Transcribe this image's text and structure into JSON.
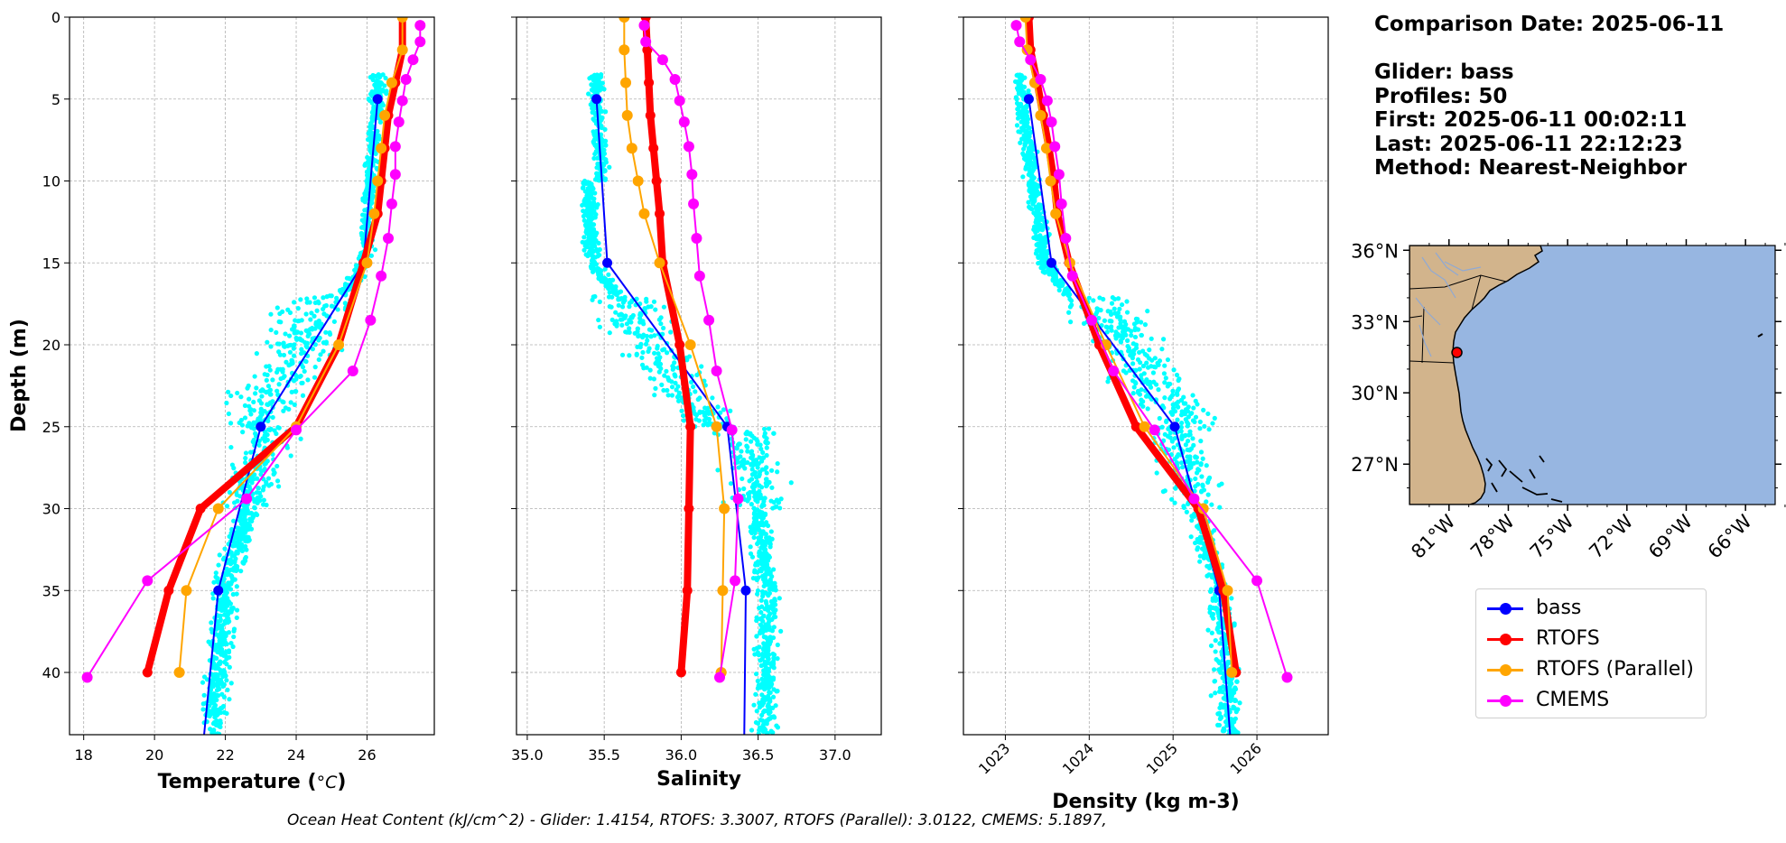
{
  "info": {
    "comparison_date": "Comparison Date: 2025-06-11",
    "glider": "Glider: bass",
    "profiles": "Profiles: 50",
    "first": "First: 2025-06-11 00:02:11",
    "last": "Last: 2025-06-11 22:12:23",
    "method": "Method: Nearest-Neighbor"
  },
  "footer": "Ocean Heat Content (kJ/cm^2) - Glider: 1.4154,  RTOFS: 3.3007,  RTOFS (Parallel): 3.0122,  CMEMS: 5.1897,",
  "colors": {
    "glider_scatter": "#00ffff",
    "bass": "#0000ff",
    "rtofs": "#ff0000",
    "rtofs_parallel": "#ffa500",
    "cmems": "#ff00ff",
    "ocean": "#97b6e1",
    "land": "#d2b48c"
  },
  "legend": [
    {
      "name": "bass",
      "color": "#0000ff"
    },
    {
      "name": "RTOFS",
      "color": "#ff0000"
    },
    {
      "name": "RTOFS (Parallel)",
      "color": "#ffa500"
    },
    {
      "name": "CMEMS",
      "color": "#ff00ff"
    }
  ],
  "map": {
    "lon_ticks": [
      "81°W",
      "78°W",
      "75°W",
      "72°W",
      "69°W",
      "66°W"
    ],
    "lat_ticks": [
      "36°N",
      "33°N",
      "30°N",
      "27°N"
    ],
    "lon_range": [
      -83.0,
      -64.5
    ],
    "lat_range": [
      25.3,
      36.2
    ],
    "glider_position": {
      "lon": -80.6,
      "lat": 31.7
    }
  },
  "chart_data": [
    {
      "type": "line",
      "ylabel": "Depth (m)",
      "xlabel": "Temperature",
      "xlabel_unit": "°C",
      "xlim": [
        17.6,
        27.9
      ],
      "ylim": [
        43.8,
        0
      ],
      "x_ticks": [
        "18",
        "20",
        "22",
        "24",
        "26"
      ],
      "y_ticks": [
        "0",
        "5",
        "10",
        "15",
        "20",
        "25",
        "30",
        "35",
        "40"
      ],
      "grid": true,
      "series": [
        {
          "name": "bass",
          "depth": [
            5,
            15,
            25,
            35,
            43.8
          ],
          "values": [
            26.3,
            25.9,
            23.0,
            21.8,
            21.4
          ]
        },
        {
          "name": "RTOFS",
          "depth": [
            0,
            2,
            4,
            6,
            8,
            10,
            12,
            15,
            20,
            25,
            30,
            35,
            40
          ],
          "values": [
            27.0,
            27.0,
            26.8,
            26.6,
            26.5,
            26.4,
            26.3,
            25.9,
            25.2,
            24.0,
            21.3,
            20.4,
            19.8
          ]
        },
        {
          "name": "RTOFS (Parallel)",
          "depth": [
            0,
            2,
            4,
            6,
            8,
            10,
            12,
            15,
            20,
            25,
            30,
            35,
            40
          ],
          "values": [
            27.0,
            27.0,
            26.7,
            26.5,
            26.4,
            26.3,
            26.2,
            26.0,
            25.2,
            24.0,
            21.8,
            20.9,
            20.7
          ]
        },
        {
          "name": "CMEMS",
          "depth": [
            0.5,
            1.5,
            2.6,
            3.8,
            5.1,
            6.4,
            7.9,
            9.6,
            11.4,
            13.5,
            15.8,
            18.5,
            21.6,
            25.2,
            29.4,
            34.4,
            40.3
          ],
          "values": [
            27.5,
            27.5,
            27.3,
            27.1,
            27.0,
            26.9,
            26.8,
            26.8,
            26.7,
            26.6,
            26.4,
            26.1,
            25.6,
            24.0,
            22.6,
            19.8,
            18.1
          ]
        }
      ]
    },
    {
      "type": "line",
      "xlabel": "Salinity",
      "xlim": [
        34.93,
        37.3
      ],
      "ylim": [
        43.8,
        0
      ],
      "x_ticks": [
        "35.0",
        "35.5",
        "36.0",
        "36.5",
        "37.0"
      ],
      "grid": true,
      "series": [
        {
          "name": "bass",
          "depth": [
            5,
            15,
            25,
            35,
            43.8
          ],
          "values": [
            35.45,
            35.52,
            36.3,
            36.42,
            36.41
          ]
        },
        {
          "name": "RTOFS",
          "depth": [
            0,
            2,
            4,
            6,
            8,
            10,
            12,
            15,
            20,
            25,
            30,
            35,
            40
          ],
          "values": [
            35.77,
            35.78,
            35.79,
            35.8,
            35.82,
            35.84,
            35.86,
            35.88,
            35.99,
            36.06,
            36.05,
            36.04,
            36.0
          ]
        },
        {
          "name": "RTOFS (Parallel)",
          "depth": [
            0,
            2,
            4,
            6,
            8,
            10,
            12,
            15,
            20,
            25,
            30,
            35,
            40
          ],
          "values": [
            35.63,
            35.63,
            35.64,
            35.65,
            35.68,
            35.72,
            35.76,
            35.86,
            36.06,
            36.23,
            36.28,
            36.27,
            36.26
          ]
        },
        {
          "name": "CMEMS",
          "depth": [
            0.5,
            1.5,
            2.6,
            3.8,
            5.1,
            6.4,
            7.9,
            9.6,
            11.4,
            13.5,
            15.8,
            18.5,
            21.6,
            25.2,
            29.4,
            34.4,
            40.3
          ],
          "values": [
            35.76,
            35.77,
            35.88,
            35.96,
            35.99,
            36.02,
            36.05,
            36.07,
            36.08,
            36.1,
            36.12,
            36.18,
            36.23,
            36.33,
            36.37,
            36.35,
            36.25
          ]
        }
      ]
    },
    {
      "type": "line",
      "xlabel": "Density (kg m-3)",
      "xlim": [
        1022.5,
        1026.85
      ],
      "ylim": [
        43.8,
        0
      ],
      "x_ticks": [
        "1023",
        "1024",
        "1025",
        "1026"
      ],
      "grid": true,
      "series": [
        {
          "name": "bass",
          "depth": [
            5,
            15,
            25,
            35,
            43.8
          ],
          "values": [
            1023.28,
            1023.55,
            1025.02,
            1025.55,
            1025.68
          ]
        },
        {
          "name": "RTOFS",
          "depth": [
            0,
            2,
            4,
            6,
            8,
            10,
            12,
            15,
            20,
            25,
            30,
            35,
            40
          ],
          "values": [
            1023.28,
            1023.3,
            1023.38,
            1023.45,
            1023.52,
            1023.58,
            1023.62,
            1023.76,
            1024.12,
            1024.56,
            1025.3,
            1025.6,
            1025.75
          ]
        },
        {
          "name": "RTOFS (Parallel)",
          "depth": [
            0,
            2,
            4,
            6,
            8,
            10,
            12,
            15,
            20,
            25,
            30,
            35,
            40
          ],
          "values": [
            1023.24,
            1023.26,
            1023.35,
            1023.42,
            1023.49,
            1023.54,
            1023.6,
            1023.77,
            1024.2,
            1024.66,
            1025.36,
            1025.65,
            1025.7
          ]
        },
        {
          "name": "CMEMS",
          "depth": [
            0.5,
            1.5,
            2.6,
            3.8,
            5.1,
            6.4,
            7.9,
            9.6,
            11.4,
            13.5,
            15.8,
            18.5,
            21.6,
            25.2,
            29.4,
            34.4,
            40.3
          ],
          "values": [
            1023.13,
            1023.17,
            1023.3,
            1023.42,
            1023.5,
            1023.55,
            1023.59,
            1023.64,
            1023.67,
            1023.72,
            1023.8,
            1024.03,
            1024.29,
            1024.78,
            1025.25,
            1026.0,
            1026.36
          ]
        }
      ]
    }
  ]
}
